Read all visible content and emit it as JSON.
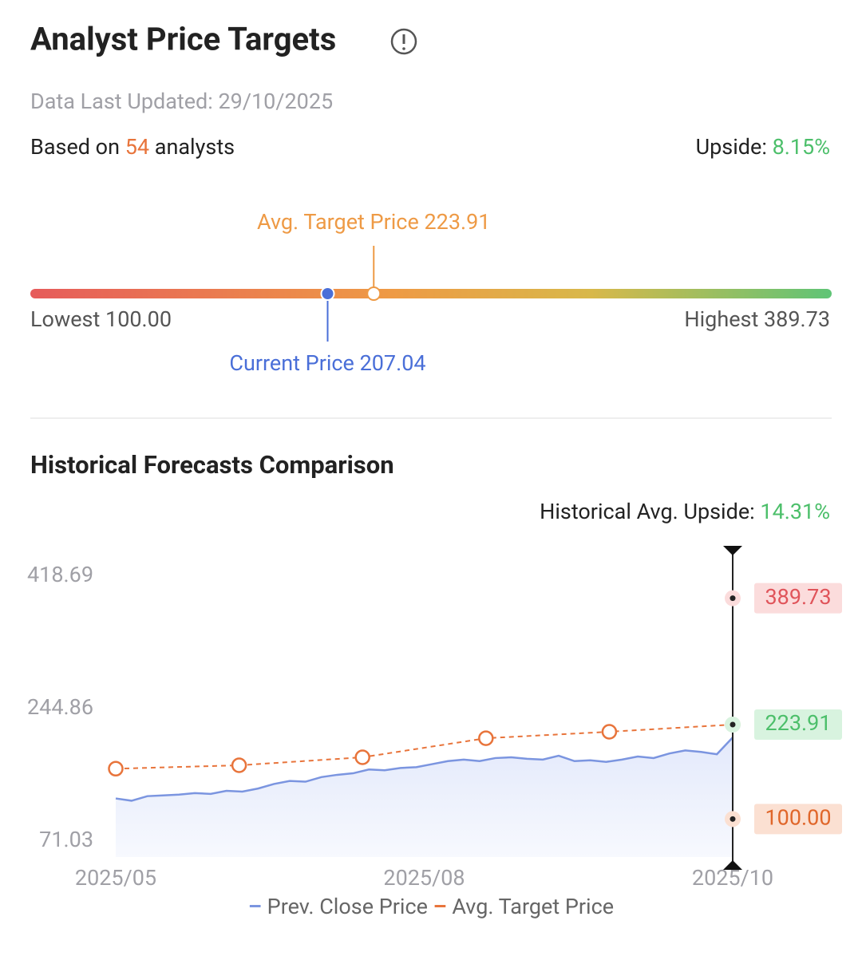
{
  "header": {
    "title": "Analyst Price Targets",
    "updated": "Data Last Updated: 29/10/2025",
    "based_prefix": "Based on",
    "analysts": "54",
    "based_suffix": "analysts",
    "upside_label": "Upside:",
    "upside": "8.15%"
  },
  "gauge": {
    "lowest": {
      "name": "Lowest",
      "value": 100,
      "label": "100.00"
    },
    "highest": {
      "name": "Highest",
      "value": 389.73,
      "label": "389.73"
    },
    "current": {
      "name": "Current Price",
      "value": 207.04,
      "label": "207.04"
    },
    "average": {
      "name": "Avg. Target Price",
      "value": 223.91,
      "label": "223.91"
    }
  },
  "section_title": "Historical Forecasts Comparison",
  "hist_upside_label": "Historical Avg. Upside:",
  "hist_upside": "14.31%",
  "chart_data": {
    "type": "line",
    "xticks": [
      "2025/05",
      "2025/08",
      "2025/10"
    ],
    "ylim": [
      71.03,
      418.69
    ],
    "yticks": [
      71.03,
      244.86,
      418.69
    ],
    "series": [
      {
        "name": "Prev. Close Price",
        "color": "#7b95e0",
        "values": [
          127,
          124,
          130,
          131,
          132,
          134,
          133,
          137,
          136,
          140,
          146,
          150,
          149,
          155,
          158,
          160,
          165,
          164,
          167,
          168,
          172,
          176,
          178,
          176,
          180,
          181,
          179,
          178,
          183,
          176,
          177,
          175,
          178,
          182,
          180,
          186,
          190,
          188,
          185,
          207.04
        ]
      },
      {
        "name": "Avg. Target Price",
        "color": "#e8743b",
        "values": [
          166,
          170.5,
          181,
          206,
          214.5,
          223.91
        ]
      }
    ],
    "markers": [
      {
        "value": 389.73,
        "label": "389.73",
        "color": "#e0545a",
        "bg": "#fbdcdc"
      },
      {
        "value": 223.91,
        "label": "223.91",
        "color": "#4cbf6a",
        "bg": "#d8f3df"
      },
      {
        "value": 100,
        "label": "100.00",
        "color": "#e0662a",
        "bg": "#fbe0d2"
      }
    ]
  }
}
